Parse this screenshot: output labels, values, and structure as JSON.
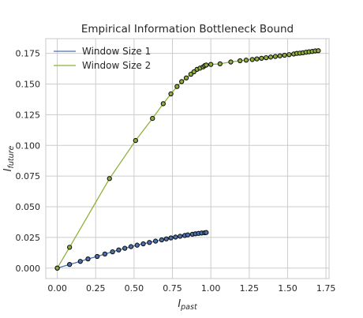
{
  "chart_data": {
    "type": "line",
    "title": "Empirical Information Bottleneck Bound",
    "xlabel_main": "I",
    "xlabel_sub": "past",
    "ylabel_main": "I",
    "ylabel_sub": "future",
    "xlim": [
      -0.075,
      1.77
    ],
    "ylim": [
      -0.0085,
      0.187
    ],
    "xticks": [
      0.0,
      0.25,
      0.5,
      0.75,
      1.0,
      1.25,
      1.5,
      1.75
    ],
    "xtick_labels": [
      "0.00",
      "0.25",
      "0.50",
      "0.75",
      "1.00",
      "1.25",
      "1.50",
      "1.75"
    ],
    "yticks": [
      0.0,
      0.025,
      0.05,
      0.075,
      0.1,
      0.125,
      0.15,
      0.175
    ],
    "ytick_labels": [
      "0.000",
      "0.025",
      "0.050",
      "0.075",
      "0.100",
      "0.125",
      "0.150",
      "0.175"
    ],
    "grid": true,
    "legend_position": "top-left",
    "series": [
      {
        "name": "Window Size 1",
        "color": "#4c72b0",
        "x": [
          0.0,
          0.08,
          0.15,
          0.2,
          0.26,
          0.31,
          0.36,
          0.4,
          0.44,
          0.48,
          0.52,
          0.56,
          0.6,
          0.64,
          0.68,
          0.71,
          0.74,
          0.77,
          0.8,
          0.83,
          0.85,
          0.88,
          0.9,
          0.92,
          0.94,
          0.96,
          0.97
        ],
        "y": [
          0.0,
          0.003,
          0.0055,
          0.0075,
          0.0095,
          0.0115,
          0.0133,
          0.0148,
          0.0162,
          0.0175,
          0.0187,
          0.0198,
          0.0209,
          0.022,
          0.023,
          0.0238,
          0.0246,
          0.0253,
          0.026,
          0.0266,
          0.0271,
          0.0276,
          0.028,
          0.0283,
          0.0286,
          0.0288,
          0.029
        ]
      },
      {
        "name": "Window Size 2",
        "color": "#8fb03c",
        "x": [
          0.0,
          0.08,
          0.34,
          0.51,
          0.62,
          0.69,
          0.74,
          0.78,
          0.81,
          0.84,
          0.87,
          0.89,
          0.91,
          0.93,
          0.95,
          0.96,
          0.97,
          1.0,
          1.06,
          1.13,
          1.19,
          1.23,
          1.27,
          1.3,
          1.33,
          1.36,
          1.39,
          1.42,
          1.45,
          1.48,
          1.51,
          1.54,
          1.56,
          1.58,
          1.6,
          1.62,
          1.64,
          1.66,
          1.68,
          1.7
        ],
        "y": [
          0.0,
          0.017,
          0.073,
          0.104,
          0.122,
          0.134,
          0.142,
          0.148,
          0.152,
          0.155,
          0.158,
          0.16,
          0.162,
          0.163,
          0.164,
          0.165,
          0.1655,
          0.166,
          0.1665,
          0.168,
          0.169,
          0.1695,
          0.17,
          0.1705,
          0.171,
          0.1715,
          0.172,
          0.1725,
          0.173,
          0.1735,
          0.174,
          0.1745,
          0.175,
          0.1752,
          0.1755,
          0.176,
          0.1763,
          0.1766,
          0.177,
          0.1772
        ]
      }
    ]
  }
}
